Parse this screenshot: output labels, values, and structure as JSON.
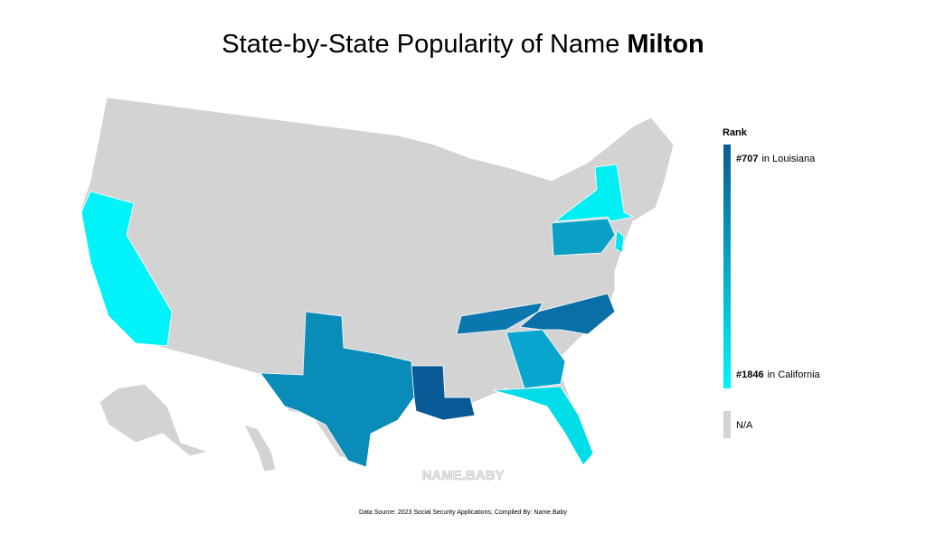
{
  "header": {
    "title": "State-by-State Popularity of Name",
    "name": "Milton"
  },
  "legend": {
    "title": "Rank",
    "top": {
      "rank": "#707",
      "state": "in Louisiana",
      "color": "#0a5a98"
    },
    "bottom": {
      "rank": "#1846",
      "state": "in California",
      "color": "#00f5fa"
    },
    "na": {
      "label": "N/A",
      "color": "#d3d3d3"
    }
  },
  "map": {
    "base_color": "#d3d3d3",
    "fills": [
      "#00f3f8",
      "#0a8cb8",
      "#0a5a98",
      "#0a78ae",
      "#0a6fa6",
      "#08a6ce",
      "#00dde9",
      "#00eff5",
      "#0aa0c6",
      "#00e6f0"
    ]
  },
  "watermark": "NAME.BABY",
  "footer": {
    "source": "Data Source: 2023 Social Security Applications; Compiled By: Name.Baby"
  }
}
